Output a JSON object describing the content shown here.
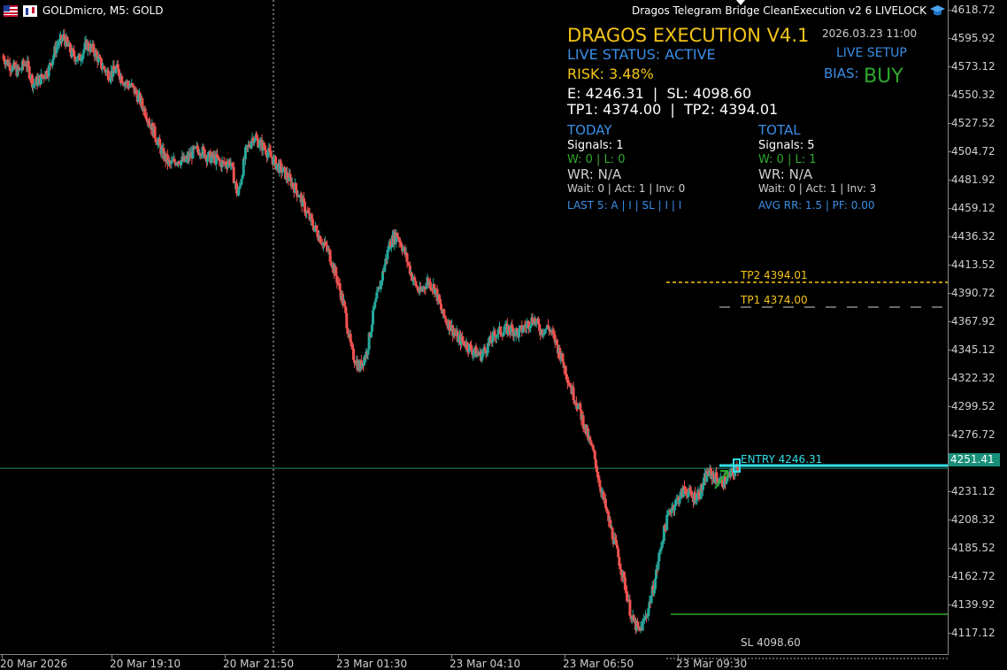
{
  "header": {
    "symbol_label": "GOLDmicro, M5:  GOLD",
    "ea_label": "Dragos  Telegram  Bridge  CleanExecution  v2  6  LIVELOCK",
    "ea_icon": "graduation-cap-icon"
  },
  "panel": {
    "title": "DRAGOS EXECUTION V4.1",
    "date": "2026.03.23 11:00",
    "live_status": "LIVE STATUS: ACTIVE",
    "live_setup": "LIVE SETUP",
    "risk": "RISK: 3.48%",
    "bias_label": "BIAS:",
    "bias_value": "BUY",
    "entry_sl": "E: 4246.31  |  SL: 4098.60",
    "tp_line": "TP1: 4374.00  |  TP2: 4394.01",
    "today": {
      "heading": "TODAY",
      "signals": "Signals: 1",
      "wl": "W: 0 | L: 0",
      "wr": "WR: N/A",
      "wait": "Wait: 0 | Act: 1 | Inv: 0",
      "last5": "LAST 5: A | I | SL | I | I"
    },
    "total": {
      "heading": "TOTAL",
      "signals": "Signals: 5",
      "wl": "W: 0 | L: 1",
      "wr": "WR: N/A",
      "wait": "Wait: 0 | Act: 1 | Inv: 3",
      "avg": "AVG RR: 1.5 | PF: 0.00"
    }
  },
  "levels": {
    "tp2_label": "TP2 4394.01",
    "tp1_label": "TP1 4374.00",
    "entry_label": "ENTRY 4246.31",
    "sl_label": "SL 4098.60",
    "current_price": "4251.41"
  },
  "price_axis": [
    "4618.72",
    "4595.92",
    "4573.12",
    "4550.32",
    "4527.52",
    "4504.72",
    "4481.92",
    "4459.12",
    "4436.32",
    "4413.52",
    "4390.72",
    "4367.92",
    "4345.12",
    "4322.32",
    "4299.52",
    "4276.72",
    "4231.12",
    "4208.32",
    "4185.52",
    "4162.72",
    "4139.92",
    "4117.12"
  ],
  "time_axis": [
    "20 Mar 2026",
    "20 Mar 19:10",
    "20 Mar 21:50",
    "23 Mar 01:30",
    "23 Mar 04:10",
    "23 Mar 06:50",
    "23 Mar 09:30"
  ],
  "colors": {
    "bull": "#26a69a",
    "bear": "#ef5350",
    "tp2": "#f5c518",
    "tp1": "#cfcfcf",
    "entry": "#33e0e8",
    "sl": "#2ea82e",
    "current": "#1a8f7a"
  },
  "chart_data": {
    "type": "candlestick",
    "timeframe": "M5",
    "symbol": "GOLDmicro",
    "ylim": [
      4105,
      4625
    ],
    "price_path": [
      4582,
      4575,
      4570,
      4578,
      4560,
      4565,
      4572,
      4590,
      4598,
      4585,
      4580,
      4592,
      4587,
      4575,
      4568,
      4572,
      4562,
      4558,
      4548,
      4535,
      4520,
      4505,
      4495,
      4500,
      4498,
      4505,
      4508,
      4502,
      4500,
      4496,
      4498,
      4470,
      4505,
      4518,
      4512,
      4505,
      4496,
      4490,
      4482,
      4472,
      4458,
      4446,
      4435,
      4425,
      4405,
      4382,
      4345,
      4332,
      4345,
      4380,
      4405,
      4432,
      4440,
      4425,
      4405,
      4392,
      4402,
      4396,
      4375,
      4366,
      4356,
      4352,
      4346,
      4342,
      4350,
      4360,
      4362,
      4364,
      4360,
      4366,
      4372,
      4362,
      4365,
      4352,
      4335,
      4315,
      4300,
      4280,
      4262,
      4232,
      4208,
      4185,
      4160,
      4130,
      4120,
      4135,
      4160,
      4195,
      4218,
      4226,
      4235,
      4228,
      4232,
      4248,
      4244,
      4240,
      4246,
      4251
    ]
  }
}
